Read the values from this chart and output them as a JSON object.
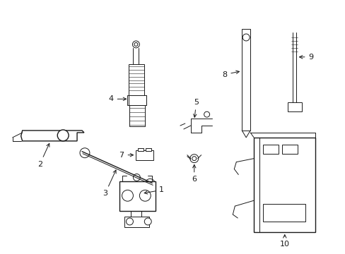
{
  "background_color": "#ffffff",
  "line_color": "#1a1a1a",
  "lw": 1.0,
  "tlw": 0.7,
  "fs": 8.0
}
